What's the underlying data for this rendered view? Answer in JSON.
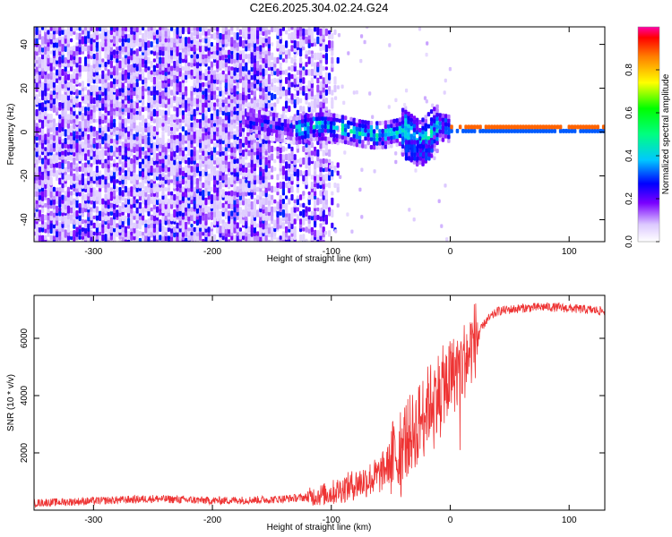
{
  "title": "C2E6.2025.304.02.24.G24",
  "chart_data": [
    {
      "type": "heatmap",
      "xlabel": "Height of straight line (km)",
      "ylabel": "Frequency (Hz)",
      "xlim": [
        -350,
        130
      ],
      "ylim": [
        -50,
        48
      ],
      "xticks": [
        -300,
        -200,
        -100,
        0,
        100
      ],
      "yticks": [
        -40,
        -20,
        0,
        20,
        40
      ],
      "features": {
        "noise_region_x": [
          -350,
          -110
        ],
        "tone_onset_x": -170,
        "tone_frequency_hz": 2,
        "dip_center_x": -25,
        "dip_min_frequency_hz": -12
      },
      "colorbar": {
        "label": "Normalized spectral amplitude",
        "range": [
          0,
          1
        ],
        "ticks": [
          0.0,
          0.2,
          0.4,
          0.6,
          0.8
        ]
      }
    },
    {
      "type": "line",
      "xlabel": "Height of straight line (km)",
      "ylabel": "SNR (10 * v/v)",
      "xlim": [
        -350,
        130
      ],
      "ylim": [
        0,
        7500
      ],
      "xticks": [
        -300,
        -200,
        -100,
        0,
        100
      ],
      "yticks": [
        2000,
        4000,
        6000
      ],
      "color": "#ee3333",
      "series": [
        {
          "name": "SNR",
          "x": [
            -350,
            -300,
            -250,
            -200,
            -150,
            -120,
            -100,
            -80,
            -60,
            -50,
            -40,
            -30,
            -20,
            -10,
            0,
            10,
            20,
            30,
            40,
            60,
            80,
            100,
            130
          ],
          "y": [
            250,
            320,
            400,
            330,
            370,
            450,
            600,
            900,
            1200,
            1700,
            2400,
            2800,
            3600,
            4200,
            4600,
            5100,
            5900,
            6600,
            6950,
            7050,
            7100,
            7050,
            6950
          ]
        }
      ]
    }
  ]
}
